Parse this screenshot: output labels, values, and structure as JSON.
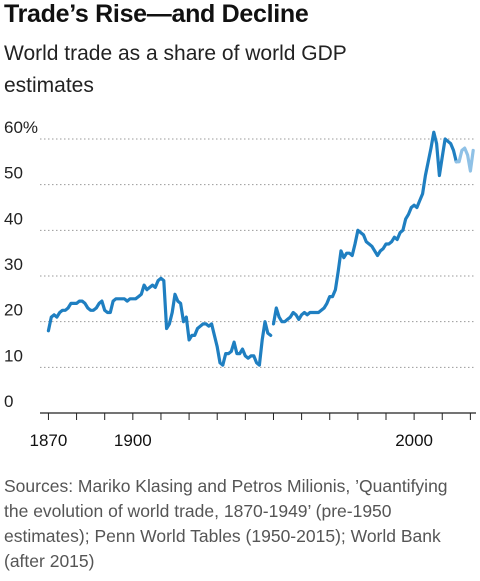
{
  "title": "Trade’s Rise—and Decline",
  "subtitle": "World trade as a share of world GDP estimates",
  "source": "Sources: Mariko Klasing and Petros Milionis, ’Quantifying the evolution of world trade, 1870-1949’ (pre-1950 estimates); Penn World Tables (1950-2015); World Bank (after 2015)",
  "colors": {
    "line_dark": "#1f7fc1",
    "line_light": "#8fc1e6",
    "grid": "#9a9a9a",
    "axis": "#222222"
  },
  "chart_data": {
    "type": "line",
    "title": "Trade’s Rise—and Decline",
    "subtitle": "World trade as a share of world GDP estimates",
    "xlabel": "",
    "ylabel": "",
    "xlim": [
      1867,
      2022
    ],
    "ylim": [
      0,
      60
    ],
    "yticks": [
      0,
      10,
      20,
      30,
      40,
      50,
      60
    ],
    "ytick_labels": [
      "0",
      "10",
      "20",
      "30",
      "40",
      "50",
      "60%"
    ],
    "xticks": [
      1870,
      1900,
      2000
    ],
    "xtick_labels": [
      "1870",
      "1900",
      "2000"
    ],
    "xtick_marks": [
      1870,
      1880,
      1890,
      1900,
      1910,
      1920,
      1930,
      1940,
      1950,
      1960,
      1970,
      1980,
      1990,
      2000,
      2010,
      2020
    ],
    "grid": true,
    "series": [
      {
        "segment": "pre-1950 estimates",
        "color": "#1f7fc1",
        "x": [
          1870,
          1871,
          1872,
          1873,
          1874,
          1875,
          1876,
          1877,
          1878,
          1879,
          1880,
          1881,
          1882,
          1883,
          1884,
          1885,
          1886,
          1887,
          1888,
          1889,
          1890,
          1891,
          1892,
          1893,
          1894,
          1895,
          1896,
          1897,
          1898,
          1899,
          1900,
          1901,
          1902,
          1903,
          1904,
          1905,
          1906,
          1907,
          1908,
          1909,
          1910,
          1911,
          1912,
          1913,
          1914,
          1915,
          1916,
          1917,
          1918,
          1919,
          1920,
          1921,
          1922,
          1923,
          1924,
          1925,
          1926,
          1927,
          1928,
          1929,
          1930,
          1931,
          1932,
          1933,
          1934,
          1935,
          1936,
          1937,
          1938,
          1939,
          1940,
          1941,
          1942,
          1943,
          1944,
          1945,
          1946,
          1947,
          1948,
          1949
        ],
        "y": [
          18,
          21,
          21.5,
          21,
          22,
          22.5,
          22.5,
          23,
          24,
          24,
          24,
          24.5,
          24.5,
          24,
          23,
          22.5,
          22.5,
          23,
          24,
          24.5,
          22.5,
          22,
          22,
          24.5,
          25,
          25,
          25,
          25,
          24.5,
          25,
          25,
          25,
          25.5,
          26,
          28,
          27,
          27.5,
          28,
          27.5,
          29,
          29.5,
          29,
          18.5,
          19.5,
          22,
          26,
          24.5,
          24,
          20,
          21,
          16,
          17,
          17,
          18.5,
          19,
          19.5,
          19.5,
          19,
          19.5,
          17,
          14.5,
          11,
          10.5,
          13,
          13,
          13.5,
          15.5,
          13,
          13,
          14,
          12.5,
          12,
          12.5,
          12.5,
          11,
          10.5,
          16,
          20,
          17.5,
          17
        ]
      },
      {
        "segment": "1950-2015",
        "color": "#1f7fc1",
        "x": [
          1950,
          1951,
          1952,
          1953,
          1954,
          1955,
          1956,
          1957,
          1958,
          1959,
          1960,
          1961,
          1962,
          1963,
          1964,
          1965,
          1966,
          1967,
          1968,
          1969,
          1970,
          1971,
          1972,
          1973,
          1974,
          1975,
          1976,
          1977,
          1978,
          1979,
          1980,
          1981,
          1982,
          1983,
          1984,
          1985,
          1986,
          1987,
          1988,
          1989,
          1990,
          1991,
          1992,
          1993,
          1994,
          1995,
          1996,
          1997,
          1998,
          1999,
          2000,
          2001,
          2002,
          2003,
          2004,
          2005,
          2006,
          2007,
          2008,
          2009,
          2010,
          2011,
          2012,
          2013,
          2014,
          2015
        ],
        "y": [
          19.5,
          23,
          21,
          20,
          20,
          20.5,
          21,
          22,
          21.5,
          20.5,
          21.5,
          22,
          21.5,
          22,
          22,
          22,
          22,
          22.5,
          23,
          24,
          25.5,
          25.5,
          27,
          31,
          35.5,
          34,
          35,
          35,
          34.5,
          37,
          40,
          39.5,
          39,
          37.5,
          37,
          36.5,
          35.5,
          34.5,
          35.5,
          36,
          37,
          37,
          37.5,
          38.5,
          38,
          39.5,
          40,
          42.5,
          43.5,
          45,
          45.5,
          45,
          46.5,
          48,
          52,
          55,
          58,
          61.5,
          59,
          52,
          56,
          60,
          59.5,
          59,
          57.5,
          55
        ]
      },
      {
        "segment": "after 2015",
        "color": "#8fc1e6",
        "x": [
          2015,
          2016,
          2017,
          2018,
          2019,
          2020,
          2021
        ],
        "y": [
          55,
          55,
          57.5,
          58,
          56.5,
          53,
          57.5
        ]
      }
    ]
  }
}
